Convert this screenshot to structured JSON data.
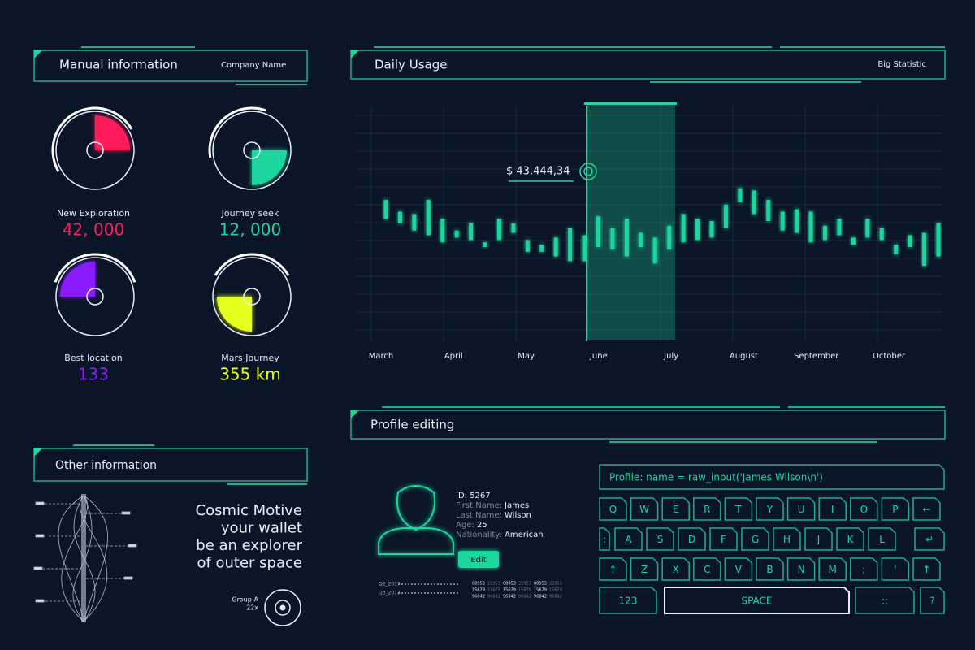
{
  "manual": {
    "title": "Manual information",
    "company": "Company Name",
    "gauges": [
      {
        "label": "New Exploration",
        "value": "42, 000"
      },
      {
        "label": "Journey seek",
        "value": "12, 000"
      },
      {
        "label": "Best location",
        "value": "133"
      },
      {
        "label": "Mars Journey",
        "value": "355 km"
      }
    ]
  },
  "other": {
    "title": "Other information",
    "slogan": [
      "Cosmic Motive",
      "your wallet",
      "be an explorer",
      "of outer space"
    ],
    "group": "Group-A",
    "group_count": "22x"
  },
  "daily": {
    "title": "Daily Usage",
    "subtitle": "Big Statistic"
  },
  "chart_data": {
    "type": "candlestick",
    "color": "#1fd69e",
    "ylim": [
      0,
      100
    ],
    "grid": true,
    "x_labels": [
      "March",
      "April",
      "May",
      "June",
      "July",
      "August",
      "September",
      "October"
    ],
    "annotation": "$ 43.444,34",
    "candles": [
      {
        "open": 60,
        "close": 52,
        "high": 61,
        "low": 49
      },
      {
        "open": 55,
        "close": 50,
        "high": 58,
        "low": 47
      },
      {
        "open": 54,
        "close": 47,
        "high": 56,
        "low": 45
      },
      {
        "open": 60,
        "close": 45,
        "high": 63,
        "low": 40
      },
      {
        "open": 52,
        "close": 42,
        "high": 54,
        "low": 38
      },
      {
        "open": 47,
        "close": 44,
        "high": 49,
        "low": 40
      },
      {
        "open": 50,
        "close": 43,
        "high": 53,
        "low": 40
      },
      {
        "open": 42,
        "close": 40,
        "high": 43,
        "low": 39
      },
      {
        "open": 52,
        "close": 43,
        "high": 54,
        "low": 40
      },
      {
        "open": 50,
        "close": 46,
        "high": 53,
        "low": 40
      },
      {
        "open": 43,
        "close": 38,
        "high": 45,
        "low": 36
      },
      {
        "open": 41,
        "close": 38,
        "high": 43,
        "low": 36
      },
      {
        "open": 44,
        "close": 36,
        "high": 46,
        "low": 34
      },
      {
        "open": 48,
        "close": 34,
        "high": 50,
        "low": 30
      },
      {
        "open": 45,
        "close": 34,
        "high": 47,
        "low": 31
      },
      {
        "open": 53,
        "close": 40,
        "high": 54,
        "low": 38
      },
      {
        "open": 48,
        "close": 39,
        "high": 50,
        "low": 36
      },
      {
        "open": 52,
        "close": 36,
        "high": 55,
        "low": 30
      },
      {
        "open": 46,
        "close": 40,
        "high": 48,
        "low": 36
      },
      {
        "open": 44,
        "close": 33,
        "high": 46,
        "low": 31
      },
      {
        "open": 49,
        "close": 39,
        "high": 53,
        "low": 35
      },
      {
        "open": 54,
        "close": 42,
        "high": 57,
        "low": 34
      },
      {
        "open": 52,
        "close": 43,
        "high": 55,
        "low": 40
      },
      {
        "open": 51,
        "close": 44,
        "high": 52,
        "low": 40
      },
      {
        "open": 58,
        "close": 48,
        "high": 60,
        "low": 44
      },
      {
        "open": 65,
        "close": 59,
        "high": 70,
        "low": 55
      },
      {
        "open": 64,
        "close": 54,
        "high": 66,
        "low": 50
      },
      {
        "open": 60,
        "close": 51,
        "high": 62,
        "low": 49
      },
      {
        "open": 55,
        "close": 47,
        "high": 57,
        "low": 45
      },
      {
        "open": 56,
        "close": 46,
        "high": 63,
        "low": 44
      },
      {
        "open": 55,
        "close": 42,
        "high": 57,
        "low": 40
      },
      {
        "open": 49,
        "close": 43,
        "high": 51,
        "low": 41
      },
      {
        "open": 52,
        "close": 45,
        "high": 54,
        "low": 43
      },
      {
        "open": 44,
        "close": 41,
        "high": 45,
        "low": 40
      },
      {
        "open": 52,
        "close": 44,
        "high": 54,
        "low": 41
      },
      {
        "open": 48,
        "close": 43,
        "high": 49,
        "low": 40
      },
      {
        "open": 41,
        "close": 37,
        "high": 42,
        "low": 36
      },
      {
        "open": 45,
        "close": 40,
        "high": 46,
        "low": 37
      },
      {
        "open": 46,
        "close": 32,
        "high": 48,
        "low": 30
      },
      {
        "open": 50,
        "close": 36,
        "high": 54,
        "low": 32
      }
    ]
  },
  "profile": {
    "title": "Profile editing",
    "id": "ID: 5267",
    "fields": [
      {
        "label": "First Name:",
        "value": "James"
      },
      {
        "label": "Last Name:",
        "value": "Wilson"
      },
      {
        "label": "Age:",
        "value": "25"
      },
      {
        "label": "Nationality:",
        "value": "American"
      }
    ],
    "edit": "Edit",
    "quarters": [
      "Q2_2017",
      "Q3_2017"
    ],
    "table": [
      [
        "08953",
        "22953",
        "08953",
        "22953",
        "08953",
        "22953"
      ],
      [
        "15679",
        "15679",
        "15679",
        "15679",
        "15679",
        "15679"
      ],
      [
        "96842",
        "96842",
        "96842",
        "96842",
        "96842",
        "96842"
      ]
    ]
  },
  "keyboard": {
    "input": "Profile: name = raw_input('James Wilson\\n')",
    "rows": [
      [
        "Q",
        "W",
        "E",
        "R",
        "T",
        "Y",
        "U",
        "I",
        "O",
        "P",
        "←"
      ],
      [
        ":",
        "A",
        "S",
        "D",
        "F",
        "G",
        "H",
        "J",
        "K",
        "L",
        "↵"
      ],
      [
        "↑",
        "Z",
        "X",
        "C",
        "V",
        "B",
        "N",
        "M",
        ";",
        "'",
        "↑"
      ],
      [
        "123",
        "SPACE",
        "::",
        "?"
      ]
    ]
  }
}
